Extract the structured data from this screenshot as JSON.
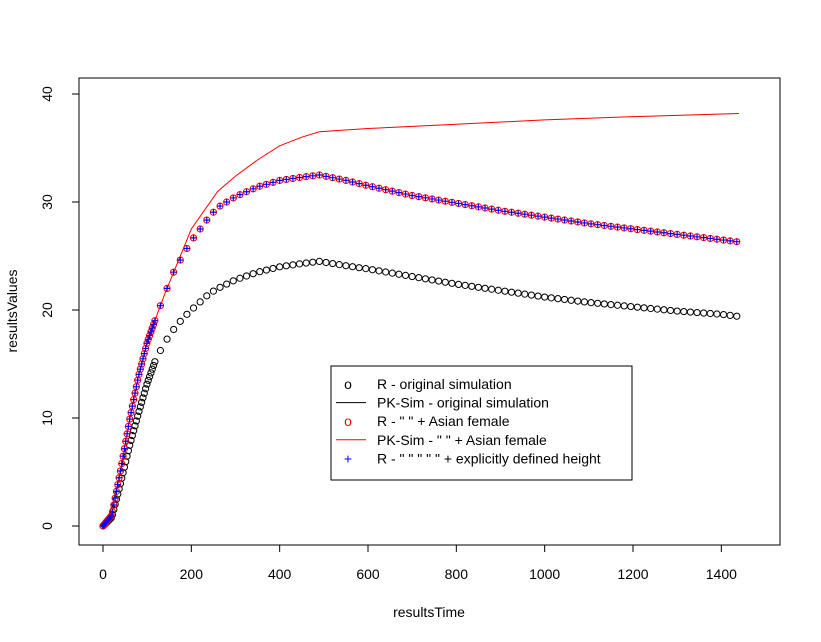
{
  "chart_data": {
    "type": "scatter",
    "title": "",
    "xlabel": "resultsTime",
    "ylabel": "resultsValues",
    "xlim": [
      0,
      1440
    ],
    "ylim": [
      0,
      40
    ],
    "x_ticks": [
      "0",
      "200",
      "400",
      "600",
      "800",
      "1000",
      "1200",
      "1400"
    ],
    "y_ticks": [
      "0",
      "10",
      "20",
      "30",
      "40"
    ],
    "grid": false,
    "legend_position": "center-bottom",
    "legend": [
      {
        "symbol": "o",
        "label": "R - original simulation",
        "color": "#000000",
        "kind": "circle"
      },
      {
        "symbol": "",
        "label": "PK-Sim - original simulation",
        "color": "#000000",
        "kind": "line"
      },
      {
        "symbol": "o",
        "label": "R - \" \" + Asian female",
        "color": "#ff0000",
        "kind": "circle"
      },
      {
        "symbol": "",
        "label": "PK-Sim - \" \" + Asian female",
        "color": "#ff0000",
        "kind": "line"
      },
      {
        "symbol": "+",
        "label": "R - \" \" \" \" \" + explicitly defined height",
        "color": "#0000ff",
        "kind": "plus"
      }
    ],
    "series": [
      {
        "name": "R - original simulation",
        "color": "#000000",
        "marker": "circle",
        "x": [
          0,
          20,
          40,
          60,
          80,
          100,
          120,
          140,
          160,
          180,
          200,
          240,
          260,
          300,
          350,
          400,
          450,
          490,
          550,
          600,
          700,
          800,
          900,
          1000,
          1100,
          1200,
          1300,
          1400,
          1440
        ],
        "y": [
          0,
          0.8,
          4.0,
          7.4,
          10.4,
          13.2,
          15.5,
          17.0,
          18.2,
          19.2,
          20.0,
          21.5,
          22.0,
          22.8,
          23.5,
          24.0,
          24.3,
          24.5,
          24.1,
          23.8,
          23.1,
          22.4,
          21.8,
          21.2,
          20.7,
          20.3,
          19.9,
          19.6,
          19.4
        ]
      },
      {
        "name": "R - \" \" + Asian female",
        "color": "#ff0000",
        "marker": "circle",
        "x": [
          0,
          20,
          40,
          60,
          80,
          100,
          120,
          140,
          160,
          180,
          200,
          240,
          260,
          300,
          350,
          400,
          450,
          490,
          550,
          600,
          700,
          800,
          900,
          1000,
          1100,
          1200,
          1300,
          1400,
          1440
        ],
        "y": [
          0,
          1.0,
          5.2,
          9.8,
          13.8,
          17.0,
          19.3,
          21.5,
          23.5,
          25.0,
          26.4,
          28.6,
          29.5,
          30.5,
          31.4,
          32.0,
          32.3,
          32.5,
          32.0,
          31.5,
          30.6,
          29.9,
          29.2,
          28.6,
          28.0,
          27.5,
          27.0,
          26.5,
          26.3
        ]
      },
      {
        "name": "PK-Sim - \" \" + Asian female",
        "color": "#ff0000",
        "marker": "line",
        "x": [
          0,
          20,
          40,
          60,
          80,
          100,
          120,
          140,
          160,
          200,
          260,
          300,
          350,
          400,
          450,
          490,
          600,
          800,
          1000,
          1200,
          1440
        ],
        "y": [
          0,
          1.0,
          5.2,
          9.8,
          13.8,
          17.0,
          19.3,
          21.5,
          23.5,
          27.5,
          31.0,
          32.4,
          33.9,
          35.2,
          36.0,
          36.5,
          36.8,
          37.2,
          37.6,
          37.9,
          38.2
        ]
      },
      {
        "name": "R - \" \" \" \" \" + explicitly defined height",
        "color": "#0000ff",
        "marker": "plus",
        "x": [
          0,
          20,
          40,
          60,
          80,
          100,
          120,
          140,
          160,
          180,
          200,
          240,
          260,
          300,
          350,
          400,
          450,
          490,
          550,
          600,
          700,
          800,
          900,
          1000,
          1100,
          1200,
          1300,
          1400,
          1440
        ],
        "y": [
          0,
          1.0,
          5.2,
          9.8,
          13.8,
          17.0,
          19.3,
          21.5,
          23.5,
          25.0,
          26.4,
          28.6,
          29.5,
          30.5,
          31.4,
          32.0,
          32.3,
          32.5,
          32.0,
          31.5,
          30.6,
          29.9,
          29.2,
          28.6,
          28.0,
          27.5,
          27.0,
          26.5,
          26.3
        ]
      }
    ]
  }
}
